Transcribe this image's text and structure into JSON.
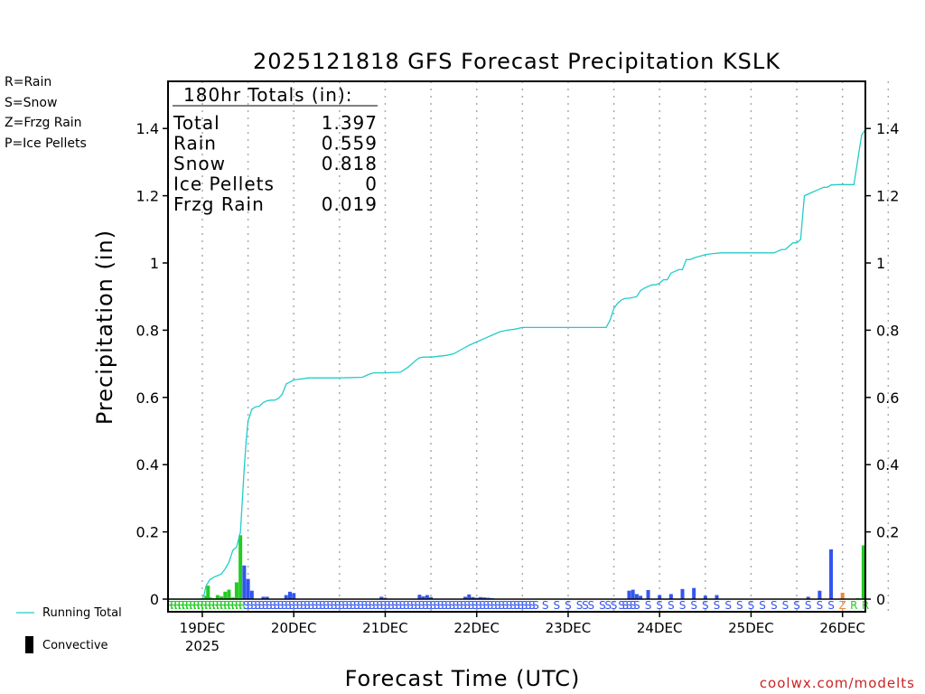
{
  "chart_data": {
    "type": "bar",
    "title": "2025121818 GFS Forecast Precipitation KSLK",
    "xlabel": "Forecast Time (UTC)",
    "ylabel": "Precipitation (in)",
    "ylim": [
      0,
      1.55
    ],
    "yticks": [
      0,
      0.2,
      0.4,
      0.6,
      0.8,
      1,
      1.2,
      1.4
    ],
    "ytick_labels": [
      "0",
      "0.2",
      "0.4",
      "0.6",
      "0.8",
      "1",
      "1.2",
      "1.4"
    ],
    "x_unit": "forecast hours from 2025-12-18 18Z",
    "xlim": [
      -3,
      180
    ],
    "xticks": [
      {
        "hour": 6,
        "label": "19DEC",
        "sublabel": "2025"
      },
      {
        "hour": 30,
        "label": "20DEC",
        "sublabel": ""
      },
      {
        "hour": 54,
        "label": "21DEC",
        "sublabel": ""
      },
      {
        "hour": 78,
        "label": "22DEC",
        "sublabel": ""
      },
      {
        "hour": 102,
        "label": "23DEC",
        "sublabel": ""
      },
      {
        "hour": 126,
        "label": "24DEC",
        "sublabel": ""
      },
      {
        "hour": 150,
        "label": "25DEC",
        "sublabel": ""
      },
      {
        "hour": 174,
        "label": "26DEC",
        "sublabel": ""
      }
    ],
    "legend": {
      "types": [
        {
          "code": "R",
          "label": "R=Rain",
          "color": "#22cc22"
        },
        {
          "code": "S",
          "label": "S=Snow",
          "color": "#3355ee"
        },
        {
          "code": "Z",
          "label": "Z=Frzg Rain",
          "color": "#ee8833"
        },
        {
          "code": "P",
          "label": "P=Ice Pellets",
          "color": "#ee2299"
        }
      ],
      "running_total_label": "Running Total",
      "running_total_color": "#22cccc",
      "convective_label": "Convective"
    },
    "totals_box": {
      "header": "180hr Totals (in):",
      "rows": [
        {
          "label": "Total",
          "value": "1.397"
        },
        {
          "label": "Rain",
          "value": "0.559"
        },
        {
          "label": "Snow",
          "value": "0.818"
        },
        {
          "label": "Ice Pellets",
          "value": "0"
        },
        {
          "label": "Frzg Rain",
          "value": "0.019"
        }
      ]
    },
    "series": [
      {
        "name": "Rain",
        "type": "R",
        "color": "#22cc22",
        "bars": [
          {
            "hour": 6,
            "value": 0.003
          },
          {
            "hour": 7,
            "value": 0.01
          },
          {
            "hour": 7.5,
            "value": 0.04
          },
          {
            "hour": 8,
            "value": 0.005
          },
          {
            "hour": 9,
            "value": 0.003
          },
          {
            "hour": 10,
            "value": 0.012
          },
          {
            "hour": 11,
            "value": 0.008
          },
          {
            "hour": 12,
            "value": 0.022
          },
          {
            "hour": 13,
            "value": 0.028
          },
          {
            "hour": 14,
            "value": 0.005
          },
          {
            "hour": 15,
            "value": 0.05
          },
          {
            "hour": 16,
            "value": 0.19
          },
          {
            "hour": 178,
            "value": 0.003
          },
          {
            "hour": 179.5,
            "value": 0.16
          }
        ]
      },
      {
        "name": "Snow",
        "type": "S",
        "color": "#3355ee",
        "bars": [
          {
            "hour": 17,
            "value": 0.1
          },
          {
            "hour": 18,
            "value": 0.06
          },
          {
            "hour": 19,
            "value": 0.025
          },
          {
            "hour": 22,
            "value": 0.007
          },
          {
            "hour": 23,
            "value": 0.007
          },
          {
            "hour": 28,
            "value": 0.012
          },
          {
            "hour": 29,
            "value": 0.022
          },
          {
            "hour": 30,
            "value": 0.018
          },
          {
            "hour": 53,
            "value": 0.007
          },
          {
            "hour": 54,
            "value": 0.004
          },
          {
            "hour": 63,
            "value": 0.013
          },
          {
            "hour": 64,
            "value": 0.008
          },
          {
            "hour": 65,
            "value": 0.012
          },
          {
            "hour": 66,
            "value": 0.006
          },
          {
            "hour": 75,
            "value": 0.007
          },
          {
            "hour": 76,
            "value": 0.014
          },
          {
            "hour": 77,
            "value": 0.006
          },
          {
            "hour": 78,
            "value": 0.004
          },
          {
            "hour": 79,
            "value": 0.006
          },
          {
            "hour": 80,
            "value": 0.005
          },
          {
            "hour": 81,
            "value": 0.004
          },
          {
            "hour": 82,
            "value": 0.003
          },
          {
            "hour": 118,
            "value": 0.025
          },
          {
            "hour": 119,
            "value": 0.028
          },
          {
            "hour": 120,
            "value": 0.015
          },
          {
            "hour": 121,
            "value": 0.01
          },
          {
            "hour": 123,
            "value": 0.027
          },
          {
            "hour": 126,
            "value": 0.012
          },
          {
            "hour": 129,
            "value": 0.015
          },
          {
            "hour": 132,
            "value": 0.03
          },
          {
            "hour": 135,
            "value": 0.033
          },
          {
            "hour": 138,
            "value": 0.01
          },
          {
            "hour": 141,
            "value": 0.012
          },
          {
            "hour": 165,
            "value": 0.007
          },
          {
            "hour": 168,
            "value": 0.025
          },
          {
            "hour": 171,
            "value": 0.148
          }
        ]
      },
      {
        "name": "Frzg Rain",
        "type": "Z",
        "color": "#ee8833",
        "bars": [
          {
            "hour": 174,
            "value": 0.019
          }
        ]
      }
    ],
    "running_total": {
      "name": "Running Total",
      "color": "#22cccc",
      "hours": [
        -3,
        6,
        6.5,
        7,
        8,
        9,
        10,
        11,
        12,
        13,
        14,
        15,
        16,
        17,
        17.5,
        18,
        19,
        20,
        21,
        22,
        23,
        24,
        25,
        26,
        27,
        28,
        30,
        34,
        36,
        42,
        48,
        50,
        51,
        54,
        58,
        60,
        61,
        62,
        63,
        64,
        66,
        70,
        72,
        76,
        78,
        80,
        82,
        84,
        86,
        88,
        90,
        100,
        112,
        113,
        114,
        115,
        116,
        117,
        118,
        120,
        121,
        122,
        123,
        124,
        125,
        126,
        127,
        128,
        129,
        130,
        131,
        132,
        133,
        134,
        135,
        136,
        138,
        140,
        142,
        144,
        150,
        156,
        158,
        159,
        160,
        161,
        162,
        163,
        164,
        166,
        168,
        169,
        170,
        171,
        173,
        175,
        177,
        179,
        180
      ],
      "values": [
        0,
        0,
        0.015,
        0.04,
        0.058,
        0.065,
        0.07,
        0.075,
        0.09,
        0.11,
        0.145,
        0.155,
        0.2,
        0.39,
        0.47,
        0.53,
        0.565,
        0.572,
        0.574,
        0.585,
        0.59,
        0.592,
        0.592,
        0.597,
        0.61,
        0.64,
        0.652,
        0.658,
        0.658,
        0.658,
        0.66,
        0.67,
        0.673,
        0.673,
        0.675,
        0.69,
        0.7,
        0.71,
        0.718,
        0.72,
        0.72,
        0.725,
        0.73,
        0.755,
        0.765,
        0.775,
        0.785,
        0.795,
        0.8,
        0.803,
        0.808,
        0.808,
        0.808,
        0.83,
        0.865,
        0.88,
        0.89,
        0.895,
        0.895,
        0.9,
        0.918,
        0.925,
        0.93,
        0.935,
        0.935,
        0.94,
        0.95,
        0.95,
        0.97,
        0.975,
        0.98,
        0.98,
        1.01,
        1.01,
        1.015,
        1.018,
        1.025,
        1.028,
        1.03,
        1.03,
        1.03,
        1.03,
        1.04,
        1.04,
        1.05,
        1.06,
        1.06,
        1.07,
        1.2,
        1.21,
        1.22,
        1.225,
        1.225,
        1.232,
        1.233,
        1.233,
        1.233,
        1.38,
        1.397
      ]
    },
    "type_labels": {
      "rain_hours": [
        -2.5,
        -1.5,
        -0.5,
        0.5,
        1.5,
        2.5,
        3.5,
        4.5,
        5.5,
        6.5,
        7.5,
        8.5,
        9.5,
        10.5,
        11.5,
        12.5,
        13.5,
        14.5,
        15.5,
        16.5
      ],
      "snow_hours": [
        17.5,
        18.5,
        19.5,
        20.5,
        21.5,
        22.5,
        23.5,
        24.5,
        25.5,
        26.5,
        27.5,
        28.5,
        29.5,
        30.5,
        31.5,
        32.5,
        33.5,
        34.5,
        35.5,
        36.5,
        37.5,
        38.5,
        39.5,
        40.5,
        41.5,
        42.5,
        43.5,
        44.5,
        45.5,
        46.5,
        47.5,
        48.5,
        49.5,
        50.5,
        51.5,
        52.5,
        53.5,
        54.5,
        55.5,
        56.5,
        57.5,
        58.5,
        59.5,
        60.5,
        61.5,
        62.5,
        63.5,
        64.5,
        65.5,
        66.5,
        67.5,
        68.5,
        69.5,
        70.5,
        71.5,
        72.5,
        73.5,
        74.5,
        75.5,
        76.5,
        77.5,
        78.5,
        79.5,
        80.5,
        81.5,
        82.5,
        83.5,
        84.5,
        85.5,
        86.5,
        87.5,
        88.5,
        89.5,
        90.5,
        91.5,
        92.5,
        93.5,
        96,
        99,
        102,
        105,
        106.5,
        108,
        111,
        112.5,
        114,
        116,
        117,
        118,
        119,
        120,
        123,
        126,
        129,
        132,
        135,
        138,
        141,
        144,
        147,
        150,
        153,
        156,
        159,
        162,
        165,
        168,
        171
      ],
      "frzg_hours": [
        174
      ],
      "rain_end_hours": [
        177,
        180,
        183
      ]
    },
    "watermark": "coolwx.com/modelts"
  }
}
